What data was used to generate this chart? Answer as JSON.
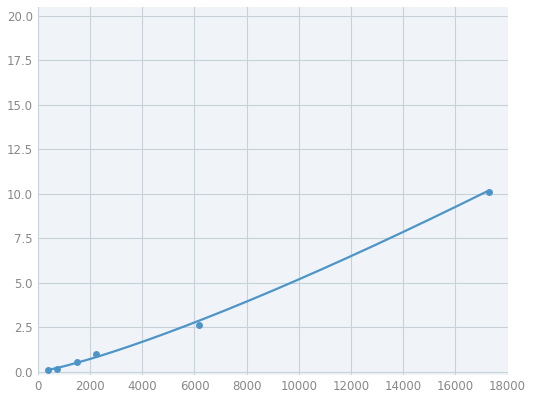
{
  "x": [
    370,
    740,
    1480,
    2220,
    6170,
    17280
  ],
  "y": [
    0.1,
    0.15,
    0.55,
    1.0,
    2.6,
    10.1
  ],
  "line_color": "#4d94c8",
  "marker_color": "#4d94c8",
  "marker_size": 5,
  "line_width": 1.6,
  "xlim": [
    0,
    18000
  ],
  "ylim": [
    -0.2,
    20.5
  ],
  "xticks": [
    0,
    2000,
    4000,
    6000,
    8000,
    10000,
    12000,
    14000,
    16000,
    18000
  ],
  "yticks": [
    0.0,
    2.5,
    5.0,
    7.5,
    10.0,
    12.5,
    15.0,
    17.5,
    20.0
  ],
  "grid_color": "#c8d0d8",
  "background_color": "#f0f4f8",
  "figure_background": "#ffffff"
}
